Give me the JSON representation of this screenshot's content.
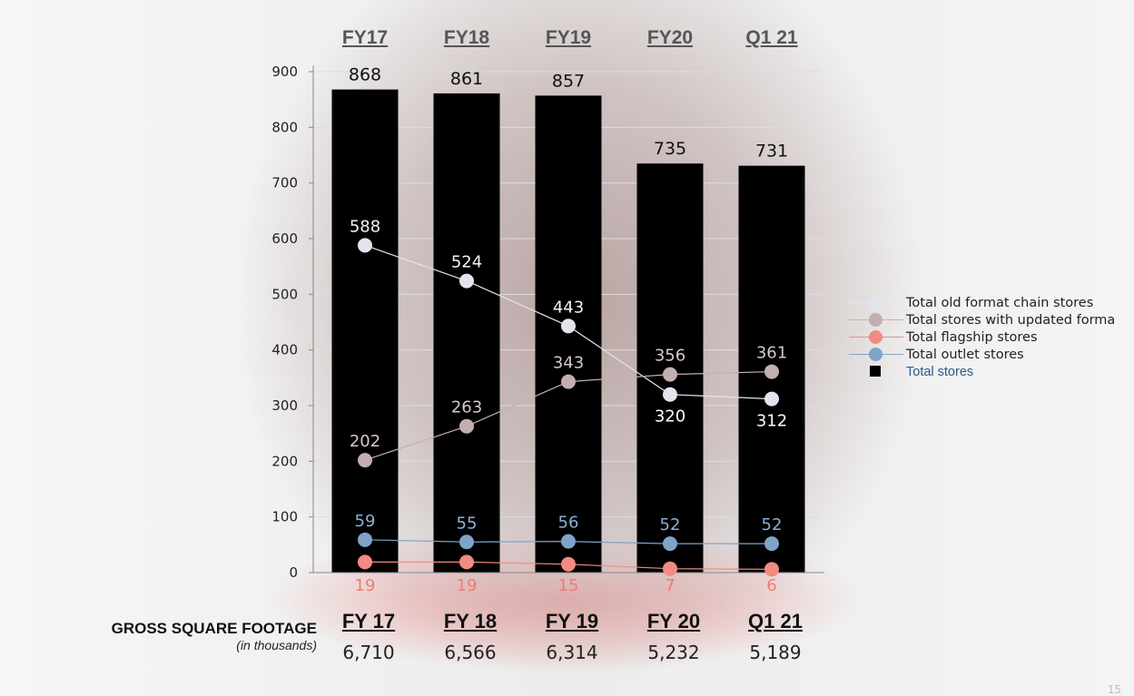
{
  "chart_data": {
    "type": "bar+line",
    "categories": [
      "FY17",
      "FY18",
      "FY19",
      "FY20",
      "Q1 21"
    ],
    "ylim": [
      0,
      900
    ],
    "yticks": [
      0,
      100,
      200,
      300,
      400,
      500,
      600,
      700,
      800,
      900
    ],
    "series": [
      {
        "name": "Total stores",
        "type": "bar",
        "color": "#000000",
        "values": [
          868,
          861,
          857,
          735,
          731
        ]
      },
      {
        "name": "Total old format chain stores",
        "type": "line",
        "color": "#e4e4ee",
        "values": [
          588,
          524,
          443,
          320,
          312
        ]
      },
      {
        "name": "Total stores with updated forma",
        "type": "line",
        "color": "#c4afb0",
        "values": [
          202,
          263,
          343,
          356,
          361
        ]
      },
      {
        "name": "Total flagship stores",
        "type": "line",
        "color": "#f28b82",
        "values": [
          19,
          19,
          15,
          7,
          6
        ]
      },
      {
        "name": "Total outlet stores",
        "type": "line",
        "color": "#7fa4c8",
        "values": [
          59,
          55,
          56,
          52,
          52
        ]
      }
    ],
    "legend_position": "right"
  },
  "footage": {
    "title": "GROSS SQUARE FOOTAGE",
    "unit": "(in thousands)",
    "periods": [
      "FY 17",
      "FY 18",
      "FY 19",
      "FY 20",
      "Q1 21"
    ],
    "values": [
      "6,710",
      "6,566",
      "6,314",
      "5,232",
      "5,189"
    ]
  },
  "page_number": "15"
}
